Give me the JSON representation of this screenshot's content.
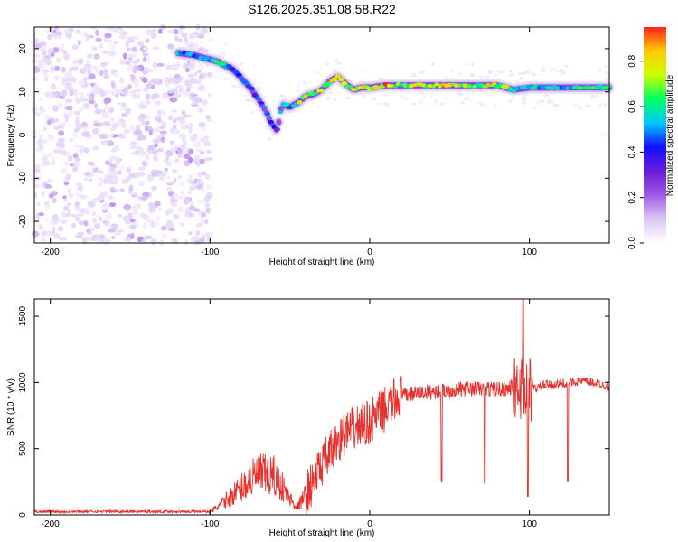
{
  "figure_title": "S126.2025.351.08.58.R22",
  "chart_data": [
    {
      "type": "heatmap",
      "title": "S126.2025.351.08.58.R22",
      "xlabel": "Height of straight line (km)",
      "ylabel": "Frequency (Hz)",
      "xlim": [
        -210,
        150
      ],
      "ylim": [
        -25,
        25
      ],
      "xticks": [
        "-200",
        "-100",
        "0",
        "100"
      ],
      "xtick_values": [
        -200,
        -100,
        0,
        100
      ],
      "yticks": [
        "20",
        "10",
        "0",
        "-10",
        "-20"
      ],
      "ytick_values": [
        20,
        10,
        0,
        -10,
        -20
      ],
      "colorbar": {
        "label": "Normalized spectral amplitude",
        "range": [
          0,
          0.95
        ],
        "ticks": [
          "0.0",
          "0.2",
          "0.4",
          "0.6",
          "0.8"
        ],
        "tick_values": [
          0,
          0.2,
          0.4,
          0.6,
          0.8
        ],
        "colormap": [
          "#ffffff",
          "#dcc8f5",
          "#9d5ae6",
          "#6a1cd8",
          "#1010ff",
          "#00c8ff",
          "#00ff60",
          "#c8ff00",
          "#ffcc00",
          "#ff2020"
        ]
      },
      "ridge": {
        "description": "dominant frequency vs height",
        "x": [
          -120,
          -110,
          -100,
          -95,
          -90,
          -85,
          -80,
          -75,
          -70,
          -65,
          -62,
          -58,
          -55,
          -50,
          -45,
          -40,
          -35,
          -30,
          -25,
          -20,
          -17,
          -14,
          -10,
          -5,
          0,
          10,
          20,
          40,
          60,
          80,
          90,
          100,
          120,
          150
        ],
        "y": [
          19,
          18.5,
          17.5,
          17,
          16,
          15,
          13,
          11,
          8.5,
          5.5,
          3,
          1,
          7,
          6.5,
          7.5,
          9,
          9.5,
          10.5,
          12.5,
          13.5,
          12.5,
          11.5,
          10.5,
          11,
          11,
          11.5,
          11.5,
          11.5,
          11.5,
          11.5,
          10.5,
          11,
          11,
          11
        ],
        "amplitude": [
          0.55,
          0.5,
          0.55,
          0.6,
          0.65,
          0.45,
          0.5,
          0.4,
          0.45,
          0.5,
          0.45,
          0.35,
          0.6,
          0.55,
          0.7,
          0.85,
          0.8,
          0.7,
          0.75,
          0.8,
          0.85,
          0.6,
          0.75,
          0.85,
          0.8,
          0.95,
          0.7,
          0.85,
          0.75,
          0.8,
          0.7,
          0.55,
          0.6,
          0.7
        ]
      },
      "noise_region_x": [
        -210,
        -100
      ]
    },
    {
      "type": "line",
      "xlabel": "Height of straight line (km)",
      "ylabel": "SNR (10 * v/v)",
      "xlim": [
        -210,
        150
      ],
      "ylim": [
        0,
        1630
      ],
      "xticks": [
        "-200",
        "-100",
        "0",
        "100"
      ],
      "xtick_values": [
        -200,
        -100,
        0,
        100
      ],
      "yticks": [
        "0",
        "500",
        "1000",
        "1500"
      ],
      "ytick_values": [
        0,
        500,
        1000,
        1500
      ],
      "color": "#e8302c",
      "series": [
        {
          "name": "SNR",
          "x": [
            -210,
            -180,
            -150,
            -120,
            -100,
            -95,
            -90,
            -85,
            -80,
            -75,
            -70,
            -65,
            -60,
            -55,
            -50,
            -45,
            -40,
            -35,
            -30,
            -25,
            -20,
            -15,
            -10,
            -5,
            0,
            5,
            10,
            15,
            20,
            30,
            40,
            50,
            60,
            70,
            80,
            90,
            95,
            100,
            105,
            110,
            120,
            130,
            140,
            150
          ],
          "y": [
            25,
            25,
            25,
            25,
            25,
            60,
            110,
            160,
            210,
            260,
            300,
            300,
            290,
            220,
            120,
            60,
            160,
            260,
            380,
            460,
            560,
            620,
            650,
            680,
            700,
            760,
            800,
            860,
            900,
            920,
            930,
            940,
            950,
            950,
            950,
            960,
            960,
            950,
            960,
            980,
            990,
            1010,
            1000,
            970
          ]
        }
      ],
      "spikes": [
        {
          "x": 45,
          "y": 250
        },
        {
          "x": 72,
          "y": 240
        },
        {
          "x": 96,
          "y": 1630
        },
        {
          "x": 99,
          "y": 140
        },
        {
          "x": 124,
          "y": 250
        }
      ]
    }
  ]
}
